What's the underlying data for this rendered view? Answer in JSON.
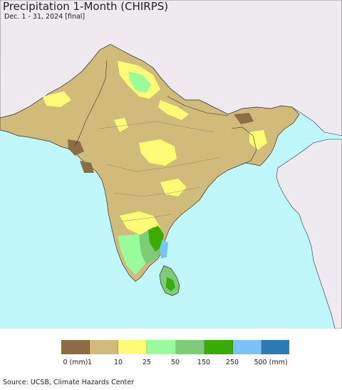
{
  "map": {
    "title": "Precipitation 1-Month (CHIRPS)",
    "subtitle": "Dec. 1 - 31, 2024 [final]",
    "colors": {
      "ocean": "#bff7fb",
      "outside_land": "#efeaef",
      "border": "#333333"
    }
  },
  "legend": {
    "swatch_colors": [
      "#8b6d46",
      "#d1bb7b",
      "#fffb74",
      "#99fc9b",
      "#7ccc78",
      "#3bab06",
      "#79c3f8",
      "#2a7bb6"
    ],
    "labels": [
      "0 (mm)",
      "1",
      "10",
      "25",
      "50",
      "150",
      "250",
      "500 (mm)"
    ]
  },
  "footer": {
    "source": "Source: UCSB, Climate Hazards Center"
  }
}
